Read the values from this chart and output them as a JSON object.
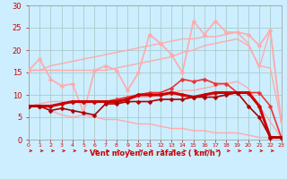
{
  "x": [
    0,
    1,
    2,
    3,
    4,
    5,
    6,
    7,
    8,
    9,
    10,
    11,
    12,
    13,
    14,
    15,
    16,
    17,
    18,
    19,
    20,
    21,
    22,
    23
  ],
  "background_color": "#cceeff",
  "grid_color": "#aacccc",
  "xlabel": "Vent moyen/en rafales ( km/h )",
  "xlabel_color": "#cc0000",
  "tick_color": "#cc0000",
  "ylim": [
    0,
    30
  ],
  "xlim": [
    0,
    23
  ],
  "yticks": [
    0,
    5,
    10,
    15,
    20,
    25,
    30
  ],
  "series": [
    {
      "name": "upper_smooth1",
      "color": "#ffaaaa",
      "linewidth": 1.0,
      "marker": null,
      "y": [
        15.5,
        15.5,
        16.5,
        17.0,
        17.5,
        18.0,
        18.5,
        19.0,
        19.5,
        20.0,
        20.5,
        21.0,
        21.5,
        22.0,
        22.5,
        22.5,
        23.0,
        23.0,
        23.5,
        24.0,
        21.5,
        16.0,
        24.5,
        4.0
      ]
    },
    {
      "name": "upper_smooth2",
      "color": "#ffaaaa",
      "linewidth": 1.0,
      "marker": null,
      "y": [
        15.5,
        15.5,
        15.5,
        15.5,
        15.5,
        15.5,
        15.5,
        15.5,
        16.0,
        16.5,
        17.0,
        17.5,
        18.0,
        18.5,
        19.5,
        20.0,
        21.0,
        21.5,
        22.0,
        22.5,
        21.0,
        16.5,
        16.0,
        4.0
      ]
    },
    {
      "name": "jagged_light",
      "color": "#ffaaaa",
      "linewidth": 1.2,
      "marker": "D",
      "markersize": 2.5,
      "y": [
        15.5,
        18.0,
        13.5,
        12.0,
        12.5,
        6.0,
        15.5,
        16.5,
        15.5,
        11.0,
        15.0,
        23.5,
        21.5,
        19.0,
        15.0,
        26.5,
        23.5,
        26.5,
        24.0,
        24.0,
        23.5,
        21.0,
        24.5,
        4.0
      ]
    },
    {
      "name": "lower_smooth1",
      "color": "#ffaaaa",
      "linewidth": 1.0,
      "marker": null,
      "y": [
        7.5,
        8.0,
        8.5,
        8.5,
        8.5,
        8.5,
        8.5,
        8.5,
        8.5,
        9.0,
        9.5,
        9.5,
        10.0,
        10.5,
        11.0,
        11.0,
        11.5,
        12.0,
        12.5,
        13.0,
        11.5,
        7.5,
        4.0,
        0.5
      ]
    },
    {
      "name": "lower_smooth2",
      "color": "#ffaaaa",
      "linewidth": 1.0,
      "marker": null,
      "y": [
        7.5,
        7.5,
        6.5,
        5.5,
        5.0,
        5.5,
        5.0,
        4.5,
        4.5,
        4.0,
        3.5,
        3.5,
        3.0,
        2.5,
        2.5,
        2.0,
        2.0,
        1.5,
        1.5,
        1.5,
        1.0,
        0.5,
        0.5,
        0.5
      ]
    },
    {
      "name": "dark_upper",
      "color": "#ee3333",
      "linewidth": 1.2,
      "marker": "D",
      "markersize": 2.5,
      "y": [
        7.5,
        7.5,
        7.5,
        8.0,
        8.5,
        8.5,
        8.5,
        8.5,
        9.0,
        9.5,
        10.0,
        10.5,
        10.5,
        11.5,
        13.5,
        13.0,
        13.5,
        12.5,
        12.5,
        10.5,
        10.5,
        10.5,
        7.5,
        0.5
      ]
    },
    {
      "name": "dark_main",
      "color": "#cc0000",
      "linewidth": 2.2,
      "marker": "D",
      "markersize": 2.5,
      "y": [
        7.5,
        7.5,
        7.5,
        8.0,
        8.5,
        8.5,
        8.5,
        8.5,
        8.5,
        9.0,
        10.0,
        10.0,
        10.0,
        10.5,
        10.0,
        9.5,
        10.0,
        10.5,
        10.5,
        10.5,
        10.5,
        7.5,
        0.5,
        0.5
      ]
    },
    {
      "name": "dark_lower",
      "color": "#aa0000",
      "linewidth": 1.2,
      "marker": "D",
      "markersize": 2.5,
      "y": [
        7.5,
        7.5,
        6.5,
        7.0,
        6.5,
        6.0,
        5.5,
        8.0,
        8.0,
        8.5,
        8.5,
        8.5,
        9.0,
        9.0,
        9.0,
        9.5,
        9.5,
        9.5,
        10.0,
        10.5,
        7.5,
        5.0,
        0.5,
        0.5
      ]
    }
  ],
  "arrow_color": "#cc0000"
}
